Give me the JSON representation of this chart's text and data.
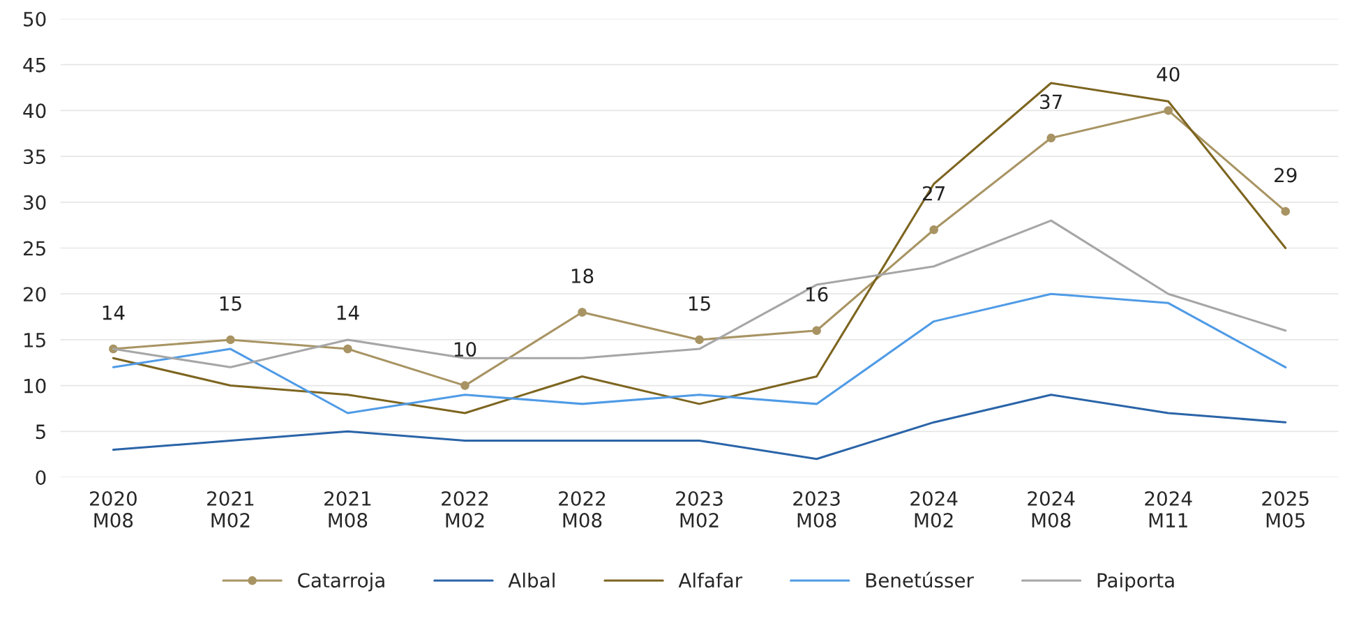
{
  "chart_data": {
    "type": "line",
    "categories": [
      "2020\nM08",
      "2021\nM02",
      "2021\nM08",
      "2022\nM02",
      "2022\nM08",
      "2023\nM02",
      "2023\nM08",
      "2024\nM02",
      "2024\nM08",
      "2024\nM11",
      "2025\nM05"
    ],
    "series": [
      {
        "name": "Catarroja",
        "color": "#a89463",
        "marker": "circle",
        "values": [
          14,
          15,
          14,
          10,
          18,
          15,
          16,
          27,
          37,
          40,
          29
        ],
        "value_labels": [
          "14",
          "15",
          "14",
          "10",
          "18",
          "15",
          "16",
          "27",
          "37",
          "40",
          "29"
        ]
      },
      {
        "name": "Albal",
        "color": "#2a64a8",
        "values": [
          3,
          4,
          5,
          4,
          4,
          4,
          2,
          6,
          9,
          7,
          6
        ]
      },
      {
        "name": "Alfafar",
        "color": "#7d6520",
        "values": [
          13,
          10,
          9,
          7,
          11,
          8,
          11,
          32,
          43,
          41,
          25
        ]
      },
      {
        "name": "Benetússer",
        "color": "#4f9be6",
        "values": [
          12,
          14,
          7,
          9,
          8,
          9,
          8,
          17,
          20,
          19,
          12
        ]
      },
      {
        "name": "Paiporta",
        "color": "#a6a6a6",
        "values": [
          14,
          12,
          15,
          13,
          13,
          14,
          21,
          23,
          28,
          20,
          16
        ]
      }
    ],
    "ylim": [
      0,
      50
    ],
    "yticks": [
      0,
      5,
      10,
      15,
      20,
      25,
      30,
      35,
      40,
      45,
      50
    ],
    "grid": "y",
    "legend": "bottom"
  }
}
